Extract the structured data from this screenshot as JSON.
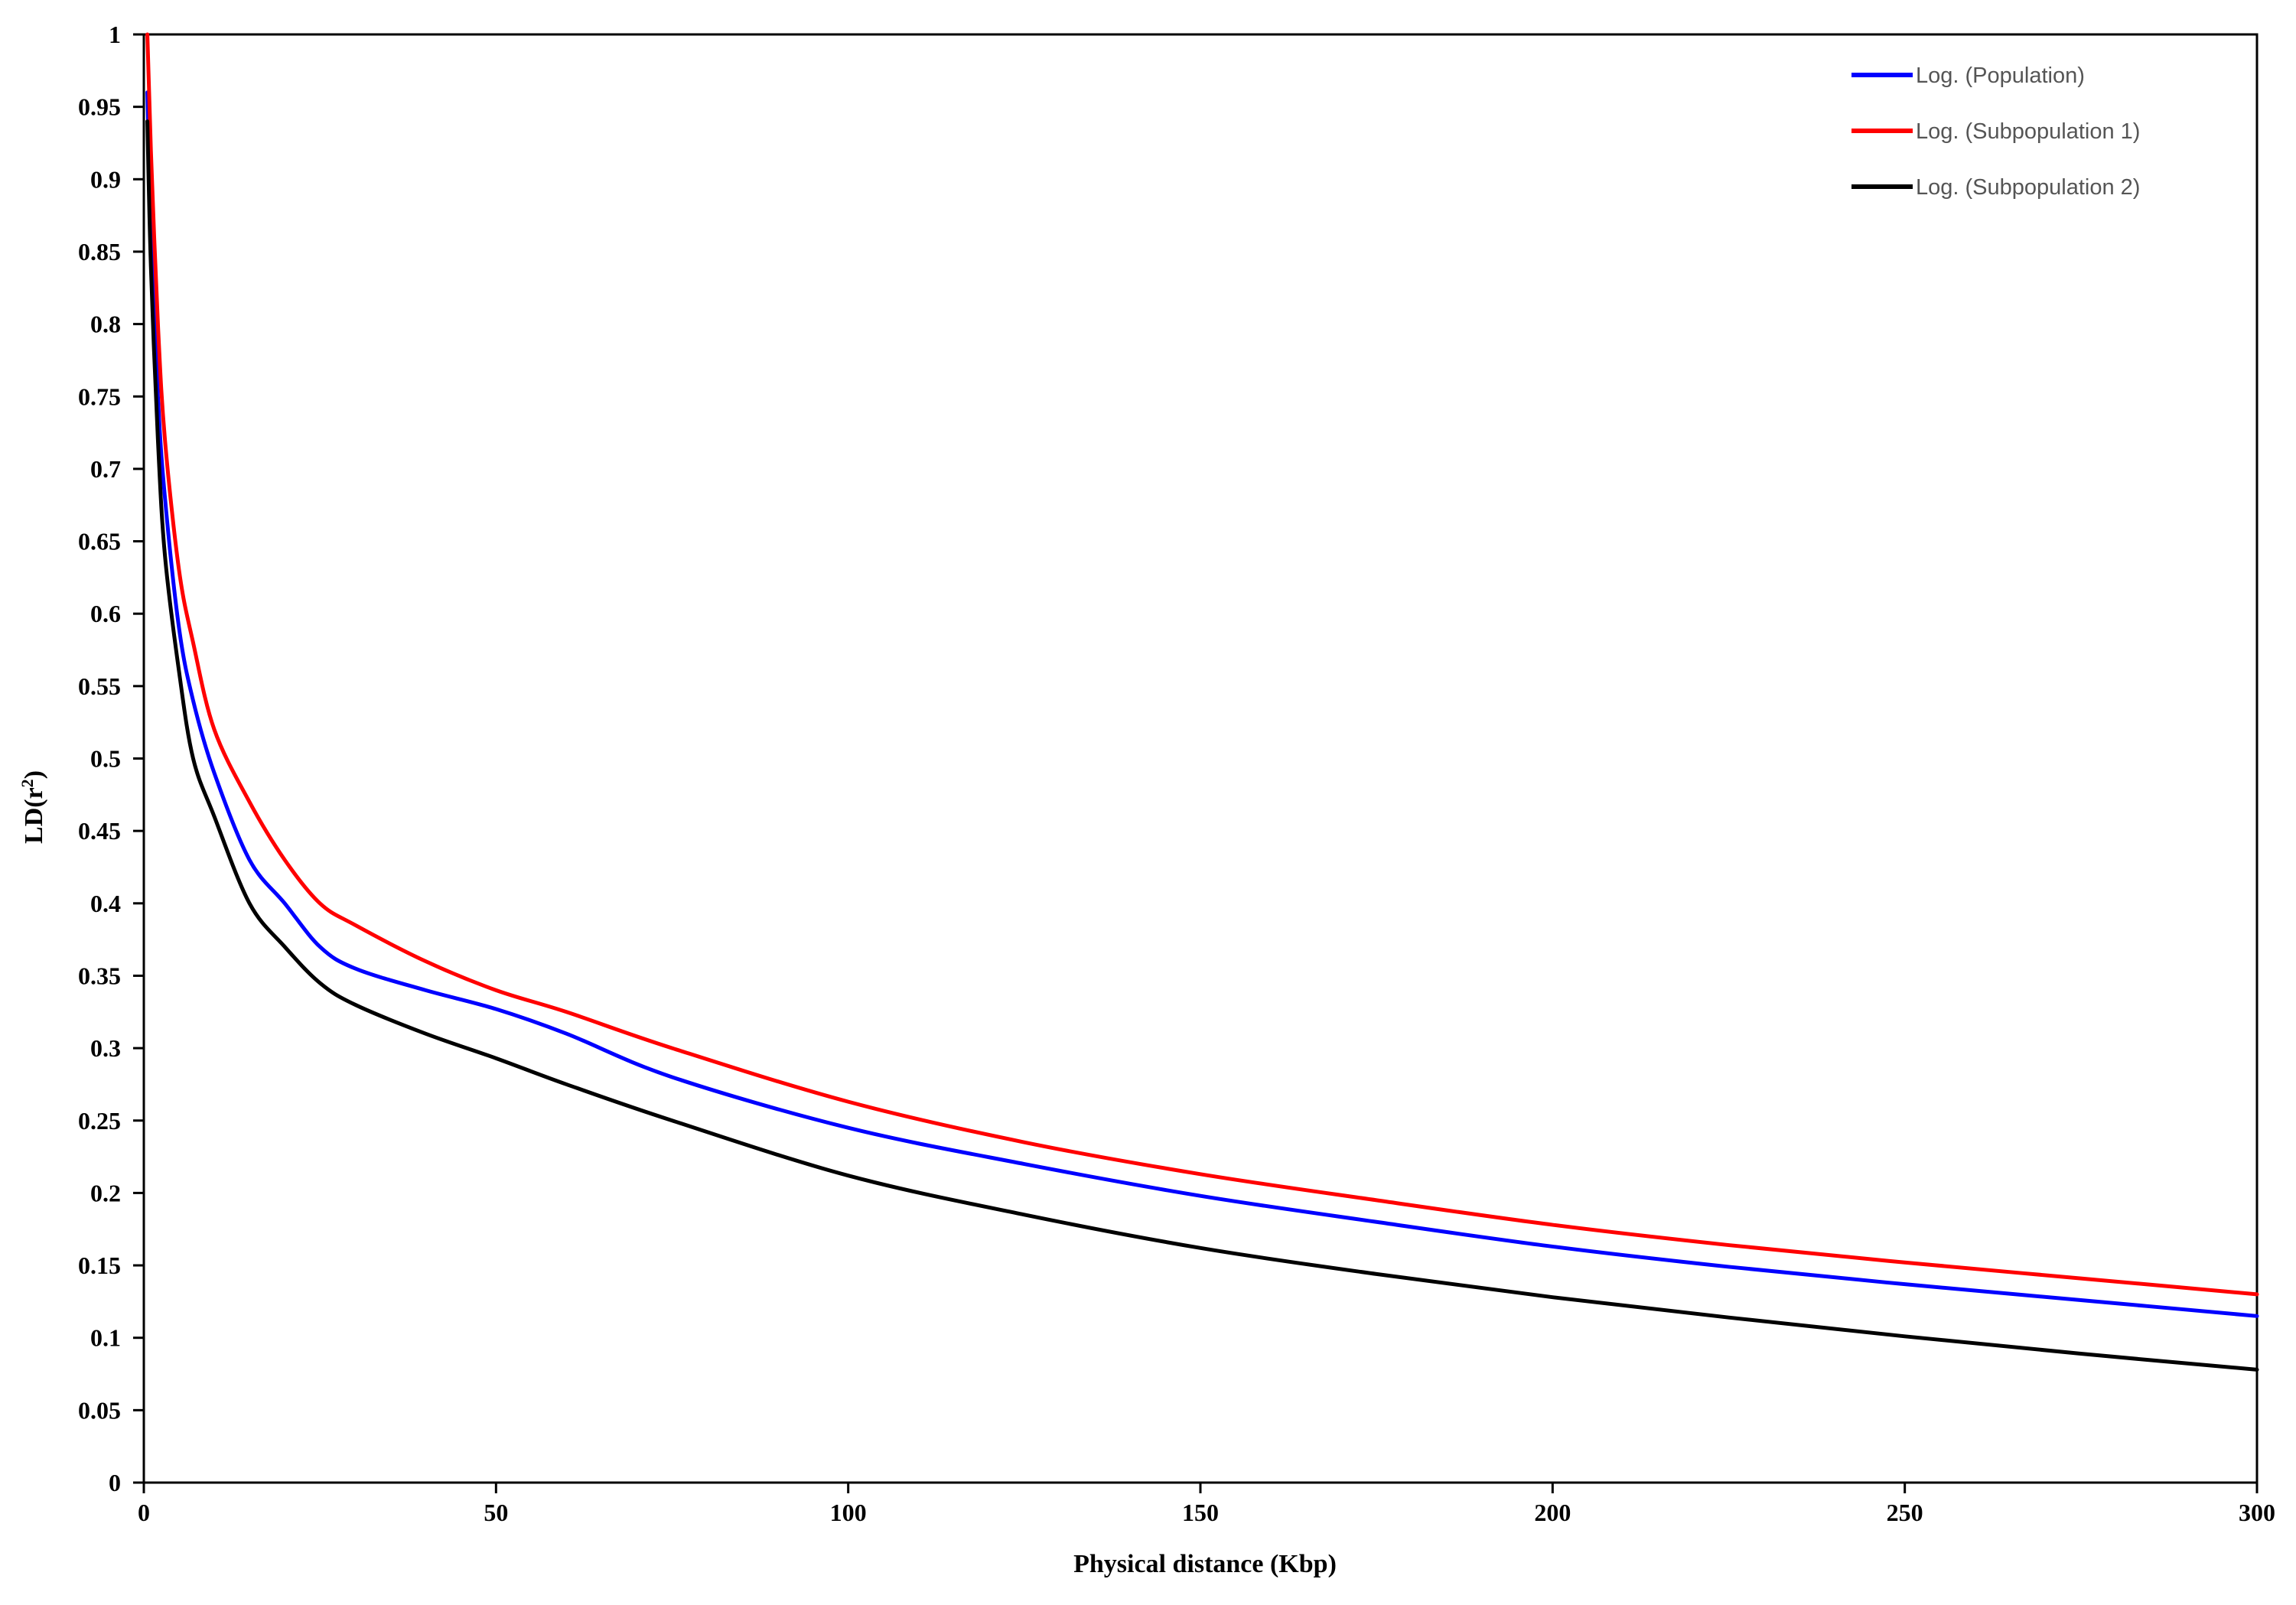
{
  "chart_data": {
    "type": "line",
    "title": "",
    "xlabel": "Physical distance (Kbp)",
    "ylabel_main": "LD(r",
    "ylabel_sup": "2",
    "ylabel_close": ")",
    "xlim": [
      0,
      300
    ],
    "ylim": [
      0,
      1
    ],
    "x_ticks": [
      "0",
      "50",
      "100",
      "150",
      "200",
      "250",
      "300"
    ],
    "x_tick_values": [
      0,
      50,
      100,
      150,
      200,
      250,
      300
    ],
    "y_ticks": [
      "0",
      "0.05",
      "0.1",
      "0.15",
      "0.2",
      "0.25",
      "0.3",
      "0.35",
      "0.4",
      "0.45",
      "0.5",
      "0.55",
      "0.6",
      "0.65",
      "0.7",
      "0.75",
      "0.8",
      "0.85",
      "0.9",
      "0.95",
      "1"
    ],
    "y_tick_values": [
      0,
      0.05,
      0.1,
      0.15,
      0.2,
      0.25,
      0.3,
      0.35,
      0.4,
      0.45,
      0.5,
      0.55,
      0.6,
      0.65,
      0.7,
      0.75,
      0.8,
      0.85,
      0.9,
      0.95,
      1
    ],
    "grid": false,
    "legend_position": "top-right",
    "series": [
      {
        "name": "Log. (Population)",
        "color": "#0000ff",
        "x": [
          0.5,
          1,
          2,
          3,
          5,
          7,
          10,
          15,
          20,
          25,
          30,
          40,
          50,
          60,
          75,
          100,
          125,
          150,
          175,
          200,
          225,
          250,
          275,
          300
        ],
        "y": [
          0.96,
          0.87,
          0.75,
          0.68,
          0.59,
          0.54,
          0.49,
          0.43,
          0.4,
          0.37,
          0.355,
          0.34,
          0.327,
          0.31,
          0.28,
          0.245,
          0.22,
          0.198,
          0.18,
          0.163,
          0.149,
          0.137,
          0.126,
          0.115
        ]
      },
      {
        "name": "Log. (Subpopulation 1)",
        "color": "#ff0000",
        "x": [
          0.5,
          1,
          2,
          3,
          5,
          7,
          10,
          15,
          20,
          25,
          30,
          40,
          50,
          60,
          75,
          100,
          125,
          150,
          175,
          200,
          225,
          250,
          275,
          300
        ],
        "y": [
          1.0,
          0.92,
          0.8,
          0.72,
          0.63,
          0.58,
          0.52,
          0.47,
          0.43,
          0.4,
          0.385,
          0.36,
          0.34,
          0.325,
          0.3,
          0.263,
          0.235,
          0.213,
          0.195,
          0.178,
          0.164,
          0.152,
          0.141,
          0.13
        ]
      },
      {
        "name": "Log. (Subpopulation 2)",
        "color": "#000000",
        "x": [
          0.5,
          1,
          2,
          3,
          5,
          7,
          10,
          15,
          20,
          25,
          30,
          40,
          50,
          60,
          75,
          100,
          125,
          150,
          175,
          200,
          225,
          250,
          275,
          300
        ],
        "y": [
          0.94,
          0.84,
          0.72,
          0.64,
          0.56,
          0.5,
          0.46,
          0.4,
          0.37,
          0.345,
          0.33,
          0.31,
          0.293,
          0.275,
          0.25,
          0.212,
          0.185,
          0.162,
          0.144,
          0.128,
          0.114,
          0.101,
          0.089,
          0.078
        ]
      }
    ]
  }
}
